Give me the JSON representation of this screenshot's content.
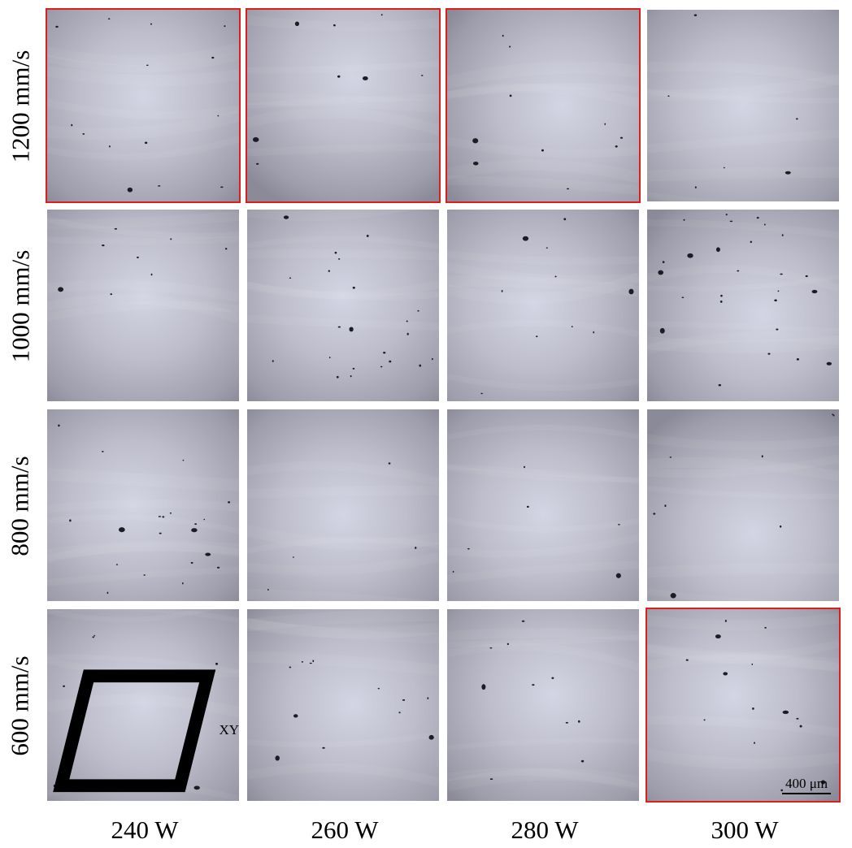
{
  "figure": {
    "row_labels": [
      "1200 mm/s",
      "1000 mm/s",
      "800 mm/s",
      "600 mm/s"
    ],
    "col_labels": [
      "240 W",
      "260 W",
      "280 W",
      "300 W"
    ],
    "highlight_color": "#d9201d",
    "panels": [
      {
        "scan_speed": "1200 mm/s",
        "laser_power": "240 W",
        "highlighted": true
      },
      {
        "scan_speed": "1200 mm/s",
        "laser_power": "260 W",
        "highlighted": true
      },
      {
        "scan_speed": "1200 mm/s",
        "laser_power": "280 W",
        "highlighted": true
      },
      {
        "scan_speed": "1200 mm/s",
        "laser_power": "300 W",
        "highlighted": false
      },
      {
        "scan_speed": "1000 mm/s",
        "laser_power": "240 W",
        "highlighted": false
      },
      {
        "scan_speed": "1000 mm/s",
        "laser_power": "260 W",
        "highlighted": false
      },
      {
        "scan_speed": "1000 mm/s",
        "laser_power": "280 W",
        "highlighted": false
      },
      {
        "scan_speed": "1000 mm/s",
        "laser_power": "300 W",
        "highlighted": false
      },
      {
        "scan_speed": "800 mm/s",
        "laser_power": "240 W",
        "highlighted": false
      },
      {
        "scan_speed": "800 mm/s",
        "laser_power": "260 W",
        "highlighted": false
      },
      {
        "scan_speed": "800 mm/s",
        "laser_power": "280 W",
        "highlighted": false
      },
      {
        "scan_speed": "800 mm/s",
        "laser_power": "300 W",
        "highlighted": false
      },
      {
        "scan_speed": "600 mm/s",
        "laser_power": "240 W",
        "highlighted": false
      },
      {
        "scan_speed": "600 mm/s",
        "laser_power": "260 W",
        "highlighted": false
      },
      {
        "scan_speed": "600 mm/s",
        "laser_power": "280 W",
        "highlighted": false
      },
      {
        "scan_speed": "600 mm/s",
        "laser_power": "300 W",
        "highlighted": true
      }
    ],
    "scale_bar_label": "400 μm",
    "plane_label": "XY",
    "plane_icon": "parallelogram-plane-icon"
  }
}
